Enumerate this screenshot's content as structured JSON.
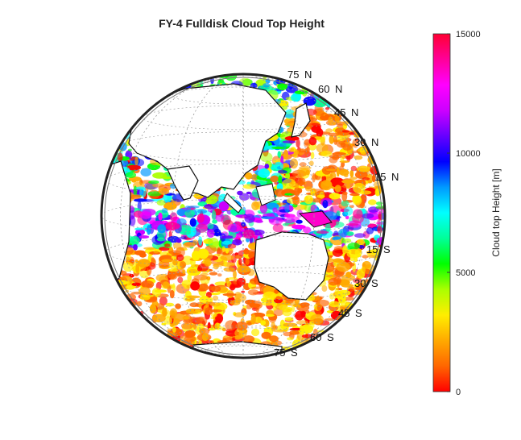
{
  "chart_data": {
    "type": "heatmap",
    "title": "FY-4 Fulldisk Cloud Top Height",
    "projection": "geostationary full disk",
    "colorbar": {
      "label": "Cloud top Height [m]",
      "min": 0,
      "max": 15000,
      "ticks": [
        0,
        5000,
        10000,
        15000
      ],
      "tick_labels": [
        "0",
        "5000",
        "10000",
        "15000"
      ],
      "colors": [
        "#ff0000",
        "#ff6600",
        "#ffaa00",
        "#ffee00",
        "#aaff00",
        "#00ff00",
        "#00ff99",
        "#00ffff",
        "#0099ff",
        "#0000ff",
        "#6600ff",
        "#cc00ff",
        "#ff00ff",
        "#ff0099",
        "#ff0033"
      ]
    },
    "latitude_labels": [
      {
        "text": "75",
        "hemi": "N"
      },
      {
        "text": "60",
        "hemi": "N"
      },
      {
        "text": "45",
        "hemi": "N"
      },
      {
        "text": "30",
        "hemi": "N"
      },
      {
        "text": "15",
        "hemi": "N"
      },
      {
        "text": "15",
        "hemi": "S"
      },
      {
        "text": "30",
        "hemi": "S"
      },
      {
        "text": "45",
        "hemi": "S"
      },
      {
        "text": "60",
        "hemi": "S"
      },
      {
        "text": "75",
        "hemi": "S"
      }
    ],
    "grid": true
  }
}
